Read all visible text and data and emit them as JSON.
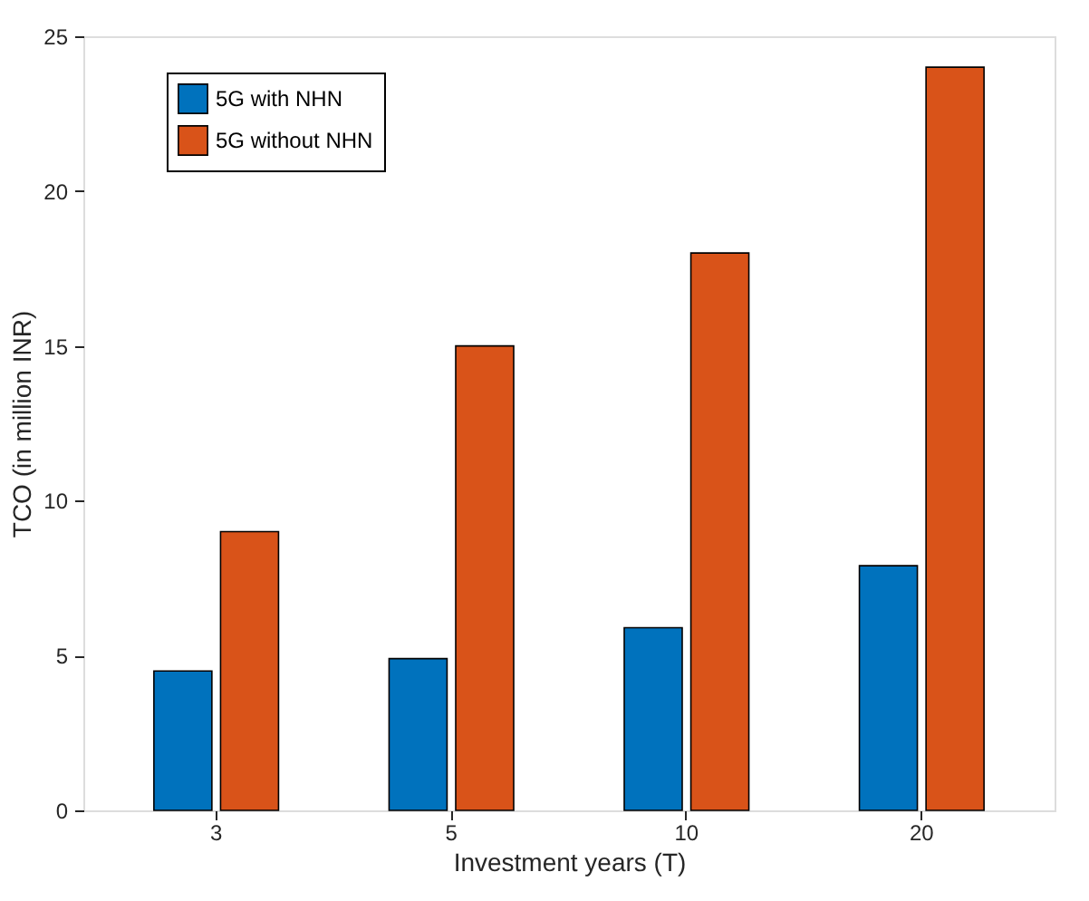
{
  "chart_data": {
    "type": "bar",
    "xlabel": "Investment years (T)",
    "ylabel": "TCO (in million INR)",
    "categories": [
      "3",
      "5",
      "10",
      "20"
    ],
    "series": [
      {
        "name": "5G with NHN",
        "color": "#0072bd",
        "values": [
          4.5,
          4.9,
          5.9,
          7.9
        ]
      },
      {
        "name": "5G without NHN",
        "color": "#d95319",
        "values": [
          9,
          15,
          18,
          24
        ]
      }
    ],
    "ylim": [
      0,
      25
    ],
    "yticks": [
      0,
      5,
      10,
      15,
      20,
      25
    ],
    "grid": false,
    "legend": "top left"
  }
}
